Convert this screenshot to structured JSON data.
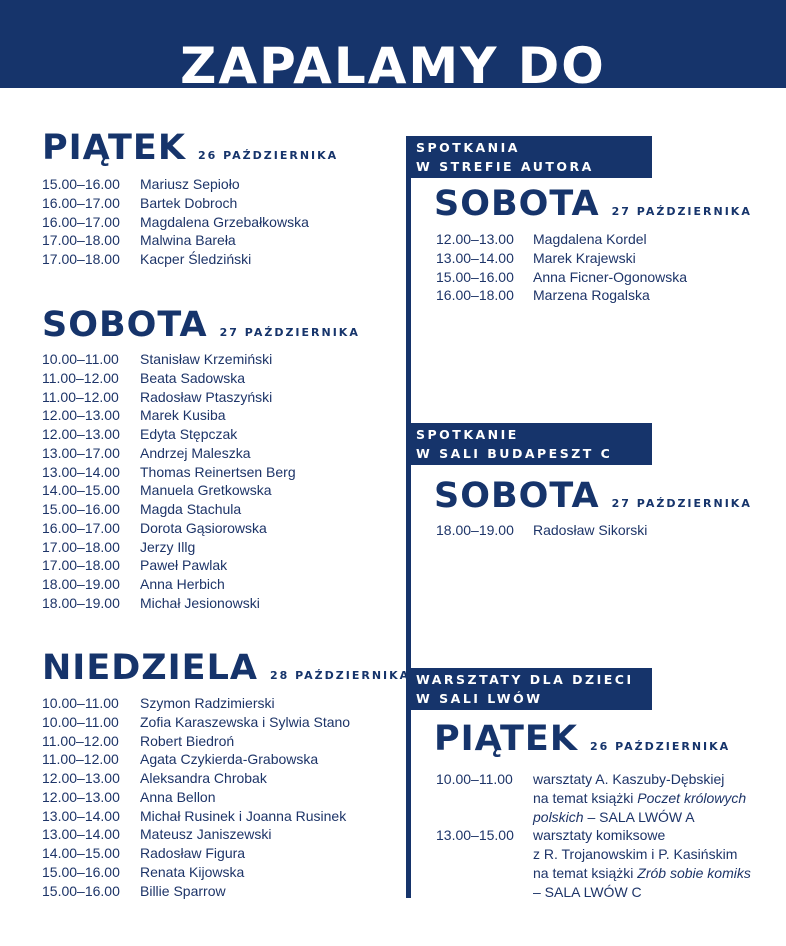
{
  "header": {
    "title": "ZAPALAMY DO SPOTKANIA"
  },
  "left": {
    "days": [
      {
        "day": "PIĄTEK",
        "date": "26 PAŹDZIERNIKA",
        "rows": [
          [
            "15.00–16.00",
            "Mariusz Sepioło"
          ],
          [
            "16.00–17.00",
            "Bartek Dobroch"
          ],
          [
            "16.00–17.00",
            "Magdalena Grzebałkowska"
          ],
          [
            "17.00–18.00",
            "Malwina Bareła"
          ],
          [
            "17.00–18.00",
            "Kacper Śledziński"
          ]
        ]
      },
      {
        "day": "SOBOTA",
        "date": "27 PAŹDZIERNIKA",
        "rows": [
          [
            "10.00–11.00",
            "Stanisław Krzemiński"
          ],
          [
            "11.00–12.00",
            "Beata Sadowska"
          ],
          [
            "11.00–12.00",
            "Radosław Ptaszyński"
          ],
          [
            "12.00–13.00",
            "Marek Kusiba"
          ],
          [
            "12.00–13.00",
            "Edyta Stępczak"
          ],
          [
            "13.00–17.00",
            "Andrzej Maleszka"
          ],
          [
            "13.00–14.00",
            "Thomas Reinertsen Berg"
          ],
          [
            "14.00–15.00",
            "Manuela Gretkowska"
          ],
          [
            "15.00–16.00",
            "Magda Stachula"
          ],
          [
            "16.00–17.00",
            "Dorota Gąsiorowska"
          ],
          [
            "17.00–18.00",
            "Jerzy Illg"
          ],
          [
            "17.00–18.00",
            "Paweł Pawlak"
          ],
          [
            "18.00–19.00",
            "Anna Herbich"
          ],
          [
            "18.00–19.00",
            "Michał Jesionowski"
          ]
        ]
      },
      {
        "day": "NIEDZIELA",
        "date": "28 PAŹDZIERNIKA",
        "rows": [
          [
            "10.00–11.00",
            "Szymon Radzimierski"
          ],
          [
            "10.00–11.00",
            "Zofia Karaszewska i Sylwia Stano"
          ],
          [
            "11.00–12.00",
            "Robert Biedroń"
          ],
          [
            "11.00–12.00",
            "Agata Czykierda-Grabowska"
          ],
          [
            "12.00–13.00",
            "Aleksandra Chrobak"
          ],
          [
            "12.00–13.00",
            "Anna Bellon"
          ],
          [
            "13.00–14.00",
            "Michał Rusinek i Joanna Rusinek"
          ],
          [
            "13.00–14.00",
            "Mateusz Janiszewski"
          ],
          [
            "14.00–15.00",
            "Radosław Figura"
          ],
          [
            "15.00–16.00",
            "Renata Kijowska"
          ],
          [
            "15.00–16.00",
            "Billie Sparrow"
          ]
        ]
      }
    ]
  },
  "right": {
    "sections": [
      {
        "heading": [
          "SPOTKANIA",
          "W STREFIE AUTORA"
        ],
        "day": "SOBOTA",
        "date": "27 PAŹDZIERNIKA",
        "rows": [
          {
            "time": "12.00–13.00",
            "lines": [
              [
                "Magdalena Kordel"
              ]
            ]
          },
          {
            "time": "13.00–14.00",
            "lines": [
              [
                "Marek Krajewski"
              ]
            ]
          },
          {
            "time": "15.00–16.00",
            "lines": [
              [
                "Anna Ficner-Ogonowska"
              ]
            ]
          },
          {
            "time": "16.00–18.00",
            "lines": [
              [
                "Marzena Rogalska"
              ]
            ]
          }
        ]
      },
      {
        "heading": [
          "SPOTKANIE",
          "W SALI BUDAPESZT C"
        ],
        "day": "SOBOTA",
        "date": "27 PAŹDZIERNIKA",
        "rows": [
          {
            "time": "18.00–19.00",
            "lines": [
              [
                "Radosław Sikorski"
              ]
            ]
          }
        ]
      },
      {
        "heading": [
          "WARSZTATY DLA DZIECI",
          "W SALI LWÓW"
        ],
        "day": "PIĄTEK",
        "date": "26 PAŹDZIERNIKA",
        "rows": [
          {
            "time": "10.00–11.00",
            "lines": [
              [
                "warsztaty A. Kaszuby-Dębskiej"
              ],
              [
                "na temat książki ",
                {
                  "italic": "Poczet królowych"
                }
              ],
              [
                {
                  "italic": "polskich"
                },
                " – SALA LWÓW A"
              ]
            ]
          },
          {
            "time": "13.00–15.00",
            "lines": [
              [
                "warsztaty komiksowe"
              ],
              [
                "z R. Trojanowskim i P. Kasińskim"
              ],
              [
                "na temat książki ",
                {
                  "italic": "Zrób sobie komiks"
                }
              ],
              [
                "– SALA LWÓW C"
              ]
            ]
          }
        ]
      }
    ]
  }
}
